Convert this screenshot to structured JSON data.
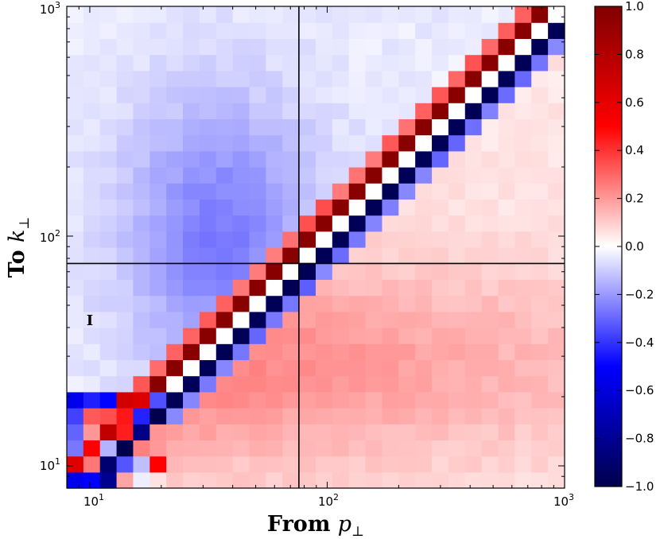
{
  "chart_data": {
    "type": "heatmap",
    "x_axis": {
      "label_text": "From ",
      "label_symbol": "p",
      "label_subscript": "⊥",
      "scale": "log",
      "range": [
        8,
        1000
      ],
      "ticks": [
        {
          "base": "10",
          "exp": "1"
        },
        {
          "base": "10",
          "exp": "2"
        },
        {
          "base": "10",
          "exp": "3"
        }
      ]
    },
    "y_axis": {
      "label_text": "To ",
      "label_symbol": "k",
      "label_subscript": "⊥",
      "scale": "log",
      "range": [
        8,
        1000
      ],
      "ticks": [
        {
          "base": "10",
          "exp": "1"
        },
        {
          "base": "10",
          "exp": "2"
        },
        {
          "base": "10",
          "exp": "3"
        }
      ]
    },
    "colorbar": {
      "colormap": "seismic",
      "range": [
        -1.0,
        1.0
      ],
      "tick_labels": [
        "1.0",
        "0.8",
        "0.6",
        "0.4",
        "0.2",
        "0.0",
        "−0.2",
        "−0.4",
        "−0.6",
        "−0.8",
        "−1.0"
      ],
      "colors": {
        "min": "#00004c",
        "neg": "#0000ff",
        "zero": "#ffffff",
        "pos": "#ff0000",
        "max": "#800000"
      }
    },
    "reference_lines": {
      "x": 76,
      "y": 76,
      "color": "#000000"
    },
    "annotation": {
      "text": "I",
      "x": 10.0,
      "y": 43
    },
    "grid": false,
    "cells": {
      "n_bins": 30,
      "log10_min": 0.903,
      "log10_max": 3.0,
      "description": "Normalized transfer T(k,p) in [-1,1]: alternating +/- checkerboard along the diagonal, negative (blue) above diagonal for k<~100, positive (pink) below diagonal"
    }
  }
}
